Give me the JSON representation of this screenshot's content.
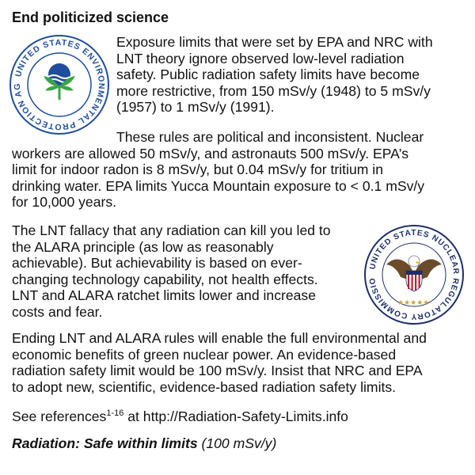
{
  "title": "End politicized science",
  "paragraphs": {
    "p1": [
      "Exposure limits that were set by EPA and NRC with",
      "LNT theory ignore observed low-level radiation",
      "safety. Public radiation safety limits have become",
      "more restrictive, from 150 mSv/y (1948) to 5 mSv/y",
      "(1957) to 1 mSv/y (1991)."
    ],
    "p2": [
      "These rules are political and inconsistent. Nuclear",
      "workers are allowed 50 mSv/y, and astronauts 500 mSv/y. EPA’s",
      "limit for indoor radon is 8 mSv/y, but 0.04 mSv/y for tritium in",
      "drinking water. EPA limits Yucca Mountain exposure to < 0.1 mSv/y",
      "for 10,000 years."
    ],
    "p3": [
      "The LNT fallacy that any radiation can kill you led to",
      "the ALARA principle (as low as reasonably",
      "achievable). But achievability is based on ever-",
      "changing technology capability, not health effects.",
      "LNT and ALARA ratchet limits lower and increase",
      "costs and fear."
    ],
    "p4": [
      "Ending LNT and ALARA rules will enable the full environmental and",
      "economic benefits of green nuclear power. An evidence-based",
      "radiation safety limit would be 100 mSv/y. Insist that NRC and EPA",
      "to adopt new, scientific, evidence-based radiation safety limits."
    ]
  },
  "references": {
    "prefix": "See references",
    "superscript": "1-16",
    "suffix": " at http://Radiation-Safety-Limits.info"
  },
  "tagline": {
    "bold_part": "Radiation: Safe within limits",
    "rest": " (100 mSv/y)"
  },
  "epa_seal": {
    "text": "UNITED STATES ENVIRONMENTAL PROTECTION AGENCY",
    "color": "#1f4e9c",
    "accent": "#3aa544"
  },
  "nrc_seal": {
    "text": "UNITED STATES NUCLEAR REGULATORY COMMISSION",
    "color": "#1c2f6b",
    "accent": "#c8a43a"
  }
}
